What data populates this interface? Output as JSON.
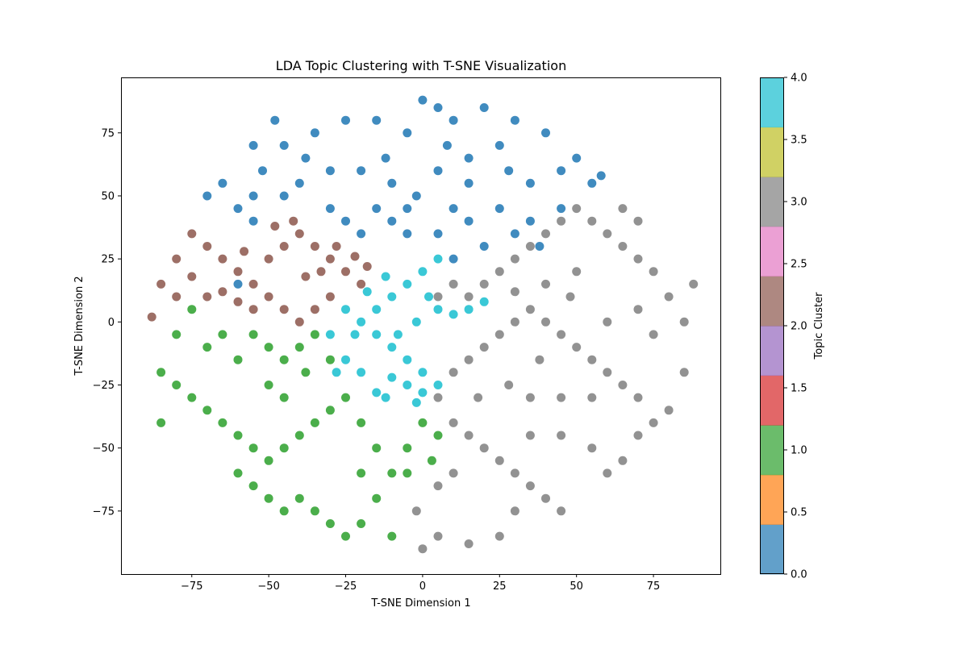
{
  "chart_data": {
    "type": "scatter",
    "title": "LDA Topic Clustering with T-SNE Visualization",
    "xlabel": "T-SNE Dimension 1",
    "ylabel": "T-SNE Dimension 2",
    "xlim": [
      -98,
      97
    ],
    "ylim": [
      -100,
      97
    ],
    "xticks": [
      -75,
      -50,
      -25,
      0,
      25,
      50,
      75
    ],
    "yticks": [
      -75,
      -50,
      -25,
      0,
      25,
      50,
      75
    ],
    "xtick_labels": [
      "−75",
      "−50",
      "−25",
      "0",
      "25",
      "50",
      "75"
    ],
    "ytick_labels": [
      "−75",
      "−50",
      "−25",
      "0",
      "25",
      "50",
      "75"
    ],
    "grid": false,
    "colorbar": {
      "label": "Topic Cluster",
      "range": [
        0,
        4
      ],
      "ticks": [
        0.0,
        0.5,
        1.0,
        1.5,
        2.0,
        2.5,
        3.0,
        3.5,
        4.0
      ],
      "tick_labels": [
        "0.0",
        "0.5",
        "1.0",
        "1.5",
        "2.0",
        "2.5",
        "3.0",
        "3.5",
        "4.0"
      ],
      "bands": [
        "#1f77b4",
        "#ff7f0e",
        "#2ca02c",
        "#d62728",
        "#9467bd",
        "#8c564b",
        "#e377c2",
        "#7f7f7f",
        "#bcbd22",
        "#17becf"
      ]
    },
    "series": [
      {
        "cluster": 0,
        "color": "#1f77b4",
        "points": [
          [
            -60,
            15
          ],
          [
            -55,
            40
          ],
          [
            -45,
            50
          ],
          [
            -40,
            55
          ],
          [
            -30,
            60
          ],
          [
            -20,
            60
          ],
          [
            -10,
            55
          ],
          [
            -5,
            45
          ],
          [
            5,
            60
          ],
          [
            15,
            65
          ],
          [
            25,
            70
          ],
          [
            35,
            55
          ],
          [
            45,
            60
          ],
          [
            55,
            55
          ],
          [
            40,
            75
          ],
          [
            30,
            80
          ],
          [
            20,
            85
          ],
          [
            10,
            80
          ],
          [
            -5,
            75
          ],
          [
            -15,
            80
          ],
          [
            -25,
            80
          ],
          [
            -35,
            75
          ],
          [
            -45,
            70
          ],
          [
            -15,
            45
          ],
          [
            -10,
            40
          ],
          [
            -5,
            35
          ],
          [
            5,
            35
          ],
          [
            15,
            40
          ],
          [
            25,
            45
          ],
          [
            35,
            40
          ],
          [
            20,
            30
          ],
          [
            10,
            25
          ],
          [
            -20,
            35
          ],
          [
            -25,
            40
          ],
          [
            -30,
            45
          ],
          [
            -65,
            55
          ],
          [
            -70,
            50
          ],
          [
            -60,
            45
          ],
          [
            -55,
            50
          ],
          [
            -52,
            60
          ],
          [
            0,
            88
          ],
          [
            8,
            70
          ],
          [
            15,
            55
          ],
          [
            28,
            60
          ],
          [
            50,
            65
          ],
          [
            58,
            58
          ],
          [
            45,
            45
          ],
          [
            38,
            30
          ],
          [
            30,
            35
          ],
          [
            -12,
            65
          ],
          [
            -38,
            65
          ],
          [
            -48,
            80
          ],
          [
            -55,
            70
          ],
          [
            5,
            85
          ],
          [
            -2,
            50
          ],
          [
            10,
            45
          ]
        ]
      },
      {
        "cluster": 1,
        "color": "#2ca02c",
        "points": [
          [
            -85,
            -20
          ],
          [
            -80,
            -5
          ],
          [
            -75,
            5
          ],
          [
            -70,
            -10
          ],
          [
            -65,
            -5
          ],
          [
            -60,
            -15
          ],
          [
            -55,
            -5
          ],
          [
            -50,
            -10
          ],
          [
            -45,
            -15
          ],
          [
            -40,
            -10
          ],
          [
            -35,
            -5
          ],
          [
            -30,
            -15
          ],
          [
            -75,
            -30
          ],
          [
            -70,
            -35
          ],
          [
            -65,
            -40
          ],
          [
            -60,
            -45
          ],
          [
            -55,
            -50
          ],
          [
            -50,
            -55
          ],
          [
            -45,
            -50
          ],
          [
            -40,
            -45
          ],
          [
            -35,
            -40
          ],
          [
            -30,
            -35
          ],
          [
            -25,
            -30
          ],
          [
            -60,
            -60
          ],
          [
            -55,
            -65
          ],
          [
            -50,
            -70
          ],
          [
            -45,
            -75
          ],
          [
            -40,
            -70
          ],
          [
            -35,
            -75
          ],
          [
            -30,
            -80
          ],
          [
            -25,
            -85
          ],
          [
            -20,
            -80
          ],
          [
            -15,
            -70
          ],
          [
            -10,
            -60
          ],
          [
            -5,
            -50
          ],
          [
            0,
            -40
          ],
          [
            5,
            -45
          ],
          [
            3,
            -55
          ],
          [
            -5,
            -60
          ],
          [
            -15,
            -50
          ],
          [
            -20,
            -40
          ],
          [
            -10,
            -85
          ],
          [
            -20,
            -60
          ],
          [
            -85,
            -40
          ],
          [
            -80,
            -25
          ],
          [
            -50,
            -25
          ],
          [
            -45,
            -30
          ],
          [
            -38,
            -20
          ]
        ]
      },
      {
        "cluster": 2,
        "color": "#8c564b",
        "points": [
          [
            -88,
            2
          ],
          [
            -85,
            15
          ],
          [
            -80,
            25
          ],
          [
            -75,
            35
          ],
          [
            -70,
            30
          ],
          [
            -65,
            25
          ],
          [
            -60,
            20
          ],
          [
            -55,
            15
          ],
          [
            -50,
            25
          ],
          [
            -45,
            30
          ],
          [
            -40,
            35
          ],
          [
            -35,
            30
          ],
          [
            -30,
            25
          ],
          [
            -25,
            20
          ],
          [
            -20,
            15
          ],
          [
            -30,
            10
          ],
          [
            -35,
            5
          ],
          [
            -40,
            0
          ],
          [
            -45,
            5
          ],
          [
            -50,
            10
          ],
          [
            -55,
            5
          ],
          [
            -60,
            8
          ],
          [
            -65,
            12
          ],
          [
            -70,
            10
          ],
          [
            -48,
            38
          ],
          [
            -42,
            40
          ],
          [
            -28,
            30
          ],
          [
            -22,
            26
          ],
          [
            -18,
            22
          ],
          [
            -38,
            18
          ],
          [
            -33,
            20
          ],
          [
            -58,
            28
          ],
          [
            -75,
            18
          ],
          [
            -80,
            10
          ]
        ]
      },
      {
        "cluster": 4,
        "color": "#17becf",
        "points": [
          [
            -25,
            5
          ],
          [
            -20,
            0
          ],
          [
            -15,
            -5
          ],
          [
            -10,
            -10
          ],
          [
            -5,
            -15
          ],
          [
            0,
            -20
          ],
          [
            5,
            -25
          ],
          [
            0,
            -28
          ],
          [
            -5,
            -25
          ],
          [
            -10,
            -22
          ],
          [
            -15,
            -28
          ],
          [
            -20,
            -20
          ],
          [
            -25,
            -15
          ],
          [
            -22,
            -5
          ],
          [
            -15,
            5
          ],
          [
            -10,
            10
          ],
          [
            -5,
            15
          ],
          [
            0,
            20
          ],
          [
            5,
            25
          ],
          [
            2,
            10
          ],
          [
            5,
            5
          ],
          [
            10,
            3
          ],
          [
            15,
            5
          ],
          [
            20,
            8
          ],
          [
            -2,
            0
          ],
          [
            -8,
            -5
          ],
          [
            -12,
            18
          ],
          [
            -18,
            12
          ],
          [
            -30,
            -5
          ],
          [
            -28,
            -20
          ],
          [
            -12,
            -30
          ],
          [
            -2,
            -32
          ]
        ]
      },
      {
        "cluster": 3,
        "color": "#7f7f7f",
        "points": [
          [
            5,
            10
          ],
          [
            10,
            15
          ],
          [
            15,
            10
          ],
          [
            20,
            15
          ],
          [
            25,
            20
          ],
          [
            30,
            25
          ],
          [
            35,
            30
          ],
          [
            40,
            35
          ],
          [
            45,
            40
          ],
          [
            50,
            45
          ],
          [
            55,
            40
          ],
          [
            60,
            35
          ],
          [
            65,
            30
          ],
          [
            70,
            25
          ],
          [
            75,
            20
          ],
          [
            80,
            10
          ],
          [
            85,
            0
          ],
          [
            88,
            15
          ],
          [
            85,
            -20
          ],
          [
            80,
            -35
          ],
          [
            75,
            -40
          ],
          [
            70,
            -30
          ],
          [
            65,
            -25
          ],
          [
            60,
            -20
          ],
          [
            55,
            -15
          ],
          [
            50,
            -10
          ],
          [
            45,
            -5
          ],
          [
            40,
            0
          ],
          [
            35,
            5
          ],
          [
            30,
            0
          ],
          [
            25,
            -5
          ],
          [
            20,
            -10
          ],
          [
            15,
            -15
          ],
          [
            10,
            -20
          ],
          [
            5,
            -30
          ],
          [
            10,
            -40
          ],
          [
            15,
            -45
          ],
          [
            20,
            -50
          ],
          [
            25,
            -55
          ],
          [
            30,
            -60
          ],
          [
            35,
            -65
          ],
          [
            40,
            -70
          ],
          [
            45,
            -75
          ],
          [
            30,
            -75
          ],
          [
            25,
            -85
          ],
          [
            15,
            -88
          ],
          [
            5,
            -85
          ],
          [
            0,
            -90
          ],
          [
            -2,
            -75
          ],
          [
            5,
            -65
          ],
          [
            10,
            -60
          ],
          [
            35,
            -45
          ],
          [
            45,
            -45
          ],
          [
            55,
            -50
          ],
          [
            60,
            -60
          ],
          [
            65,
            -55
          ],
          [
            70,
            -45
          ],
          [
            55,
            -30
          ],
          [
            45,
            -30
          ],
          [
            35,
            -30
          ],
          [
            60,
            0
          ],
          [
            70,
            5
          ],
          [
            75,
            -5
          ],
          [
            50,
            20
          ],
          [
            40,
            15
          ],
          [
            30,
            12
          ],
          [
            65,
            45
          ],
          [
            70,
            40
          ],
          [
            48,
            10
          ],
          [
            38,
            -15
          ],
          [
            28,
            -25
          ],
          [
            18,
            -30
          ]
        ]
      }
    ]
  }
}
